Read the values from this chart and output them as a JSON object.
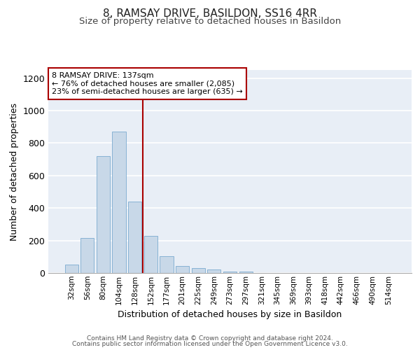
{
  "title": "8, RAMSAY DRIVE, BASILDON, SS16 4RR",
  "subtitle": "Size of property relative to detached houses in Basildon",
  "xlabel": "Distribution of detached houses by size in Basildon",
  "ylabel": "Number of detached properties",
  "categories": [
    "32sqm",
    "56sqm",
    "80sqm",
    "104sqm",
    "128sqm",
    "152sqm",
    "177sqm",
    "201sqm",
    "225sqm",
    "249sqm",
    "273sqm",
    "297sqm",
    "321sqm",
    "345sqm",
    "369sqm",
    "393sqm",
    "418sqm",
    "442sqm",
    "466sqm",
    "490sqm",
    "514sqm"
  ],
  "values": [
    50,
    215,
    720,
    870,
    440,
    230,
    105,
    45,
    32,
    20,
    10,
    8,
    0,
    0,
    0,
    0,
    0,
    0,
    0,
    0,
    0
  ],
  "bar_color": "#c8d8e8",
  "bar_edge_color": "#7aaad0",
  "background_color": "#e8eef6",
  "grid_color": "#ffffff",
  "vline_x": 4.5,
  "vline_color": "#aa0000",
  "annotation_line1": "8 RAMSAY DRIVE: 137sqm",
  "annotation_line2": "← 76% of detached houses are smaller (2,085)",
  "annotation_line3": "23% of semi-detached houses are larger (635) →",
  "annotation_box_color": "#ffffff",
  "annotation_box_edge": "#aa0000",
  "ylim": [
    0,
    1250
  ],
  "yticks": [
    0,
    200,
    400,
    600,
    800,
    1000,
    1200
  ],
  "footer_line1": "Contains HM Land Registry data © Crown copyright and database right 2024.",
  "footer_line2": "Contains public sector information licensed under the Open Government Licence v3.0.",
  "title_fontsize": 11,
  "subtitle_fontsize": 9.5,
  "ylabel_fontsize": 9,
  "xlabel_fontsize": 9,
  "tick_fontsize": 7.5,
  "annotation_fontsize": 8,
  "footer_fontsize": 6.5
}
